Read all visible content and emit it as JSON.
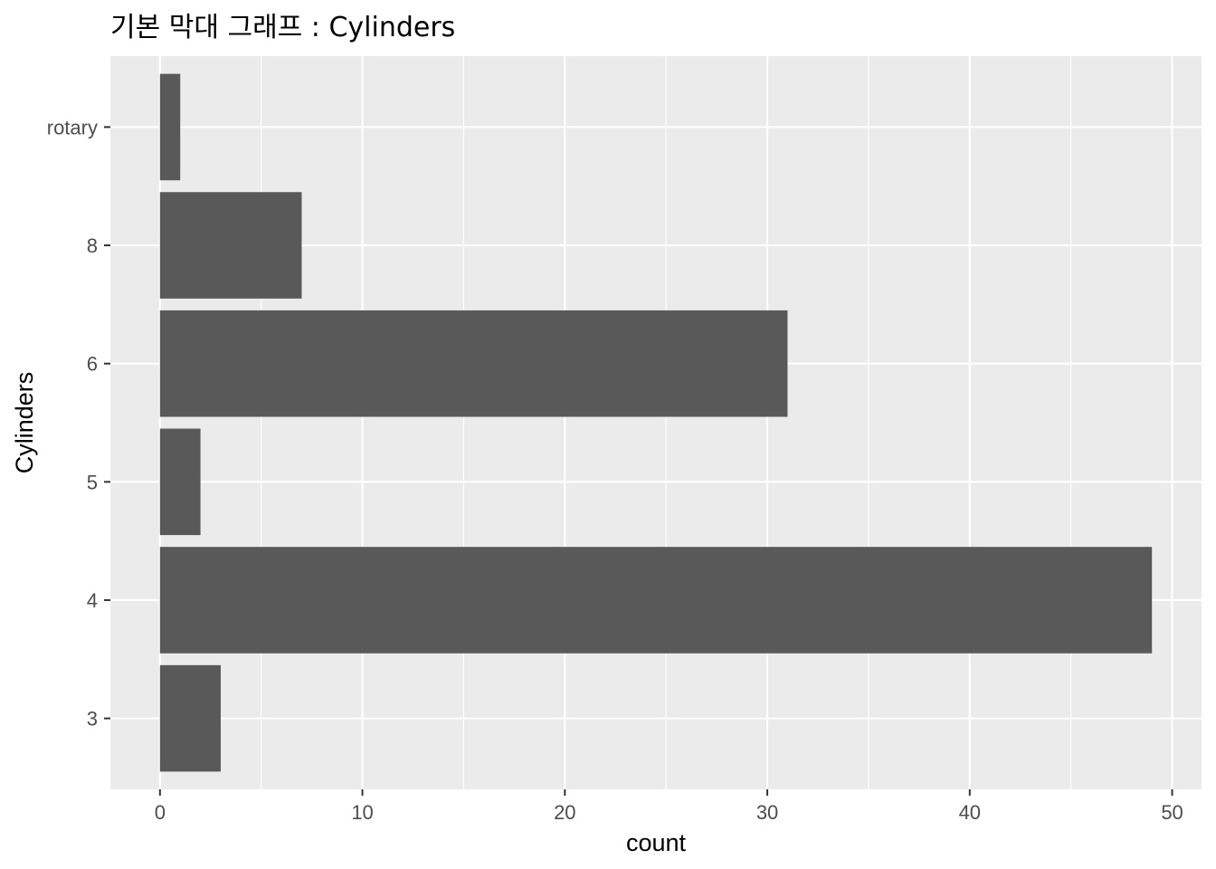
{
  "chart_data": {
    "type": "bar",
    "orientation": "horizontal",
    "title": "기본 막대 그래프 : Cylinders",
    "xlabel": "count",
    "ylabel": "Cylinders",
    "categories": [
      "3",
      "4",
      "5",
      "6",
      "8",
      "rotary"
    ],
    "values": [
      3,
      49,
      2,
      31,
      7,
      1
    ],
    "xlim": [
      -2.45,
      51.45
    ],
    "xticks": [
      "0",
      "10",
      "20",
      "30",
      "40",
      "50"
    ],
    "grid": true,
    "legend": "none",
    "colors": {
      "panel": "#ebebeb",
      "grid": "#ffffff",
      "bar": "#595959",
      "tick": "#333333",
      "tick_label": "#4d4d4d"
    }
  }
}
